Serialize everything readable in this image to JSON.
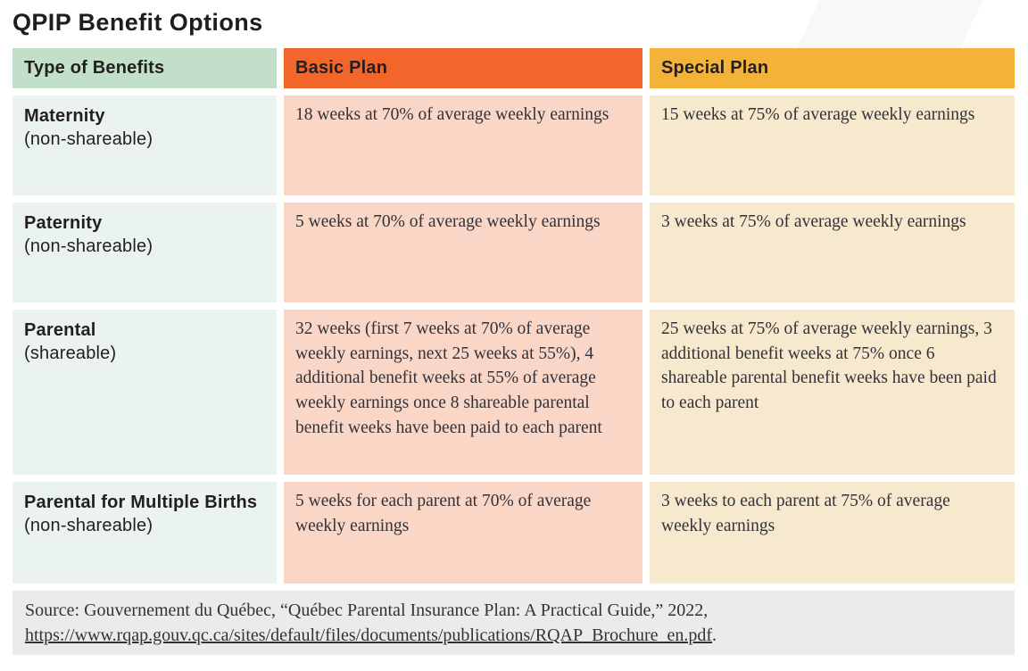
{
  "page": {
    "title": "QPIP Benefit Options"
  },
  "colors": {
    "header_type_bg": "#c2dfca",
    "header_basic_bg": "#f2662c",
    "header_special_bg": "#f3b339",
    "type_column_bg": "#eaf3ed",
    "basic_cell_bg": "#f9d6c5",
    "special_cell_bg": "#f7e9cd",
    "source_bar_bg": "#ebebea",
    "heading_text": "#231f20",
    "body_text": "#33323b"
  },
  "table": {
    "columns": [
      {
        "label": "Type of Benefits"
      },
      {
        "label": "Basic Plan"
      },
      {
        "label": "Special Plan"
      }
    ],
    "rows": [
      {
        "type": "Maternity",
        "note": "(non-shareable)",
        "basic": "18 weeks at 70% of average weekly earnings",
        "special": "15 weeks at 75% of average weekly earnings"
      },
      {
        "type": "Paternity",
        "note": "(non-shareable)",
        "basic": "5 weeks at 70% of average weekly earnings",
        "special": "3 weeks at 75% of average weekly earnings"
      },
      {
        "type": "Parental",
        "note": "(shareable)",
        "basic": "32 weeks (first 7 weeks at 70% of average weekly earnings, next 25 weeks at 55%), 4 additional benefit weeks at 55% of average weekly earnings once 8 shareable parental benefit weeks have been paid to each parent",
        "special": "25 weeks at 75% of average weekly earnings, 3 additional benefit weeks at 75% once 6 shareable parental benefit weeks have been paid to each parent"
      },
      {
        "type": "Parental for Multiple Births",
        "note": "(non-shareable)",
        "basic": "5 weeks for each parent at 70% of average weekly earnings",
        "special": "3 weeks to each parent at 75% of average weekly earnings"
      }
    ]
  },
  "footer": {
    "prefix": "Source: Gouvernement du Québec, “Québec Parental Insurance Plan: A Practical Guide,” 2022, ",
    "link": "https://www.rqap.gouv.qc.ca/sites/default/files/documents/publications/RQAP_Brochure_en.pdf",
    "suffix": "."
  }
}
